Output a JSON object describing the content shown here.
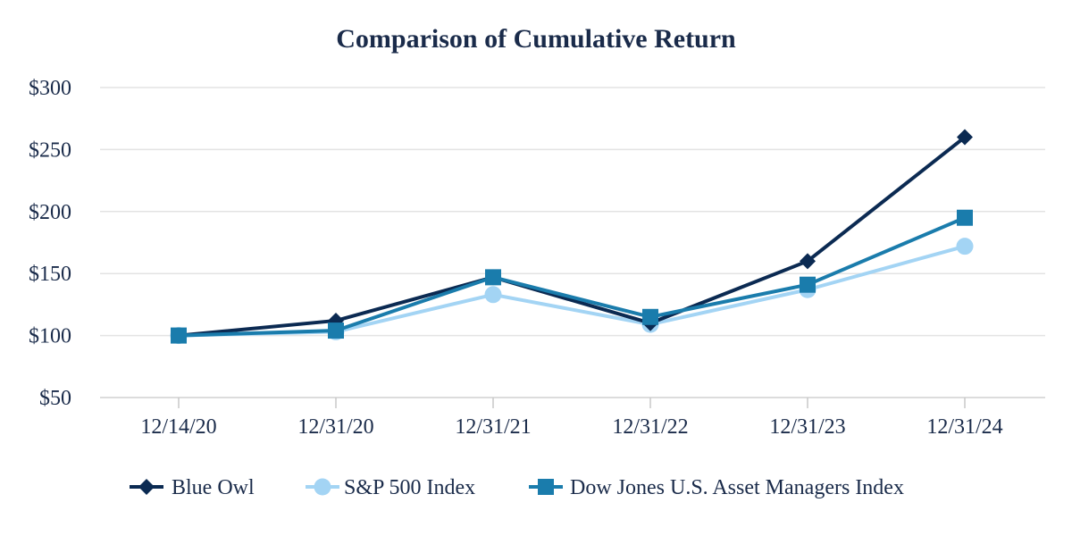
{
  "chart_data": {
    "type": "line",
    "title": "Comparison of Cumulative Return",
    "xlabel": "",
    "ylabel": "",
    "categories": [
      "12/14/20",
      "12/31/20",
      "12/31/21",
      "12/31/22",
      "12/31/23",
      "12/31/24"
    ],
    "ylim": [
      50,
      300
    ],
    "yticks": [
      50,
      100,
      150,
      200,
      250,
      300
    ],
    "ytick_labels": [
      "$50",
      "$100",
      "$150",
      "$200",
      "$250",
      "$300"
    ],
    "grid": true,
    "legend_position": "bottom",
    "series": [
      {
        "name": "Blue Owl",
        "values": [
          100,
          112,
          147,
          110,
          160,
          260
        ],
        "color": "#0b2a52",
        "marker": "diamond"
      },
      {
        "name": "S&P 500 Index",
        "values": [
          100,
          103,
          133,
          109,
          137,
          172
        ],
        "color": "#a3d4f4",
        "marker": "circle"
      },
      {
        "name": "Dow Jones U.S. Asset Managers Index",
        "values": [
          100,
          104,
          147,
          115,
          141,
          195
        ],
        "color": "#1a7cac",
        "marker": "square"
      }
    ]
  }
}
